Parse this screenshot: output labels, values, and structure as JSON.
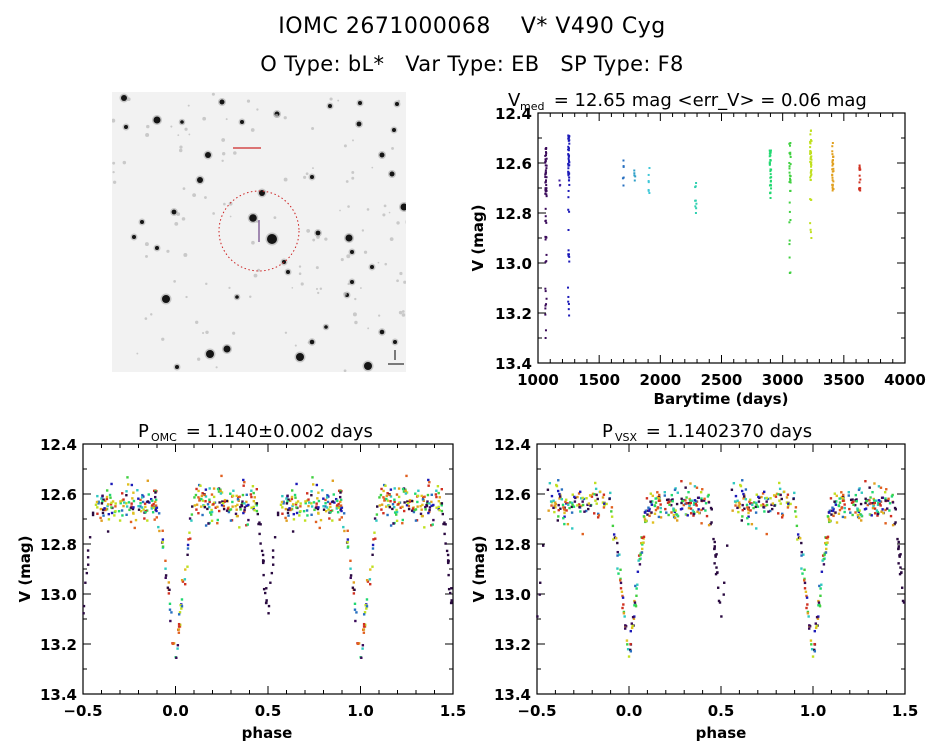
{
  "header": {
    "line1": "IOMC 2671000068    V* V490 Cyg",
    "line2": "O Type: bL*   Var Type: EB   SP Type: F8"
  },
  "finder_chart": {
    "description": "DSS finder image centered on target with red dashed circle and cross marker",
    "marker_color": "#cc2020",
    "circle_color": "#cc2020"
  },
  "chart_data": [
    {
      "id": "lightcurve-time",
      "type": "scatter",
      "title_main": "V",
      "title_sub": "med",
      "title_rest": " = 12.65 mag <err_V> = 0.06 mag",
      "xlabel": "Barytime (days)",
      "ylabel": "V (mag)",
      "xlim": [
        1000,
        4000
      ],
      "ylim": [
        13.4,
        12.4
      ],
      "y_inverted": true,
      "xticks": [
        1000,
        1500,
        2000,
        2500,
        3000,
        3500,
        4000
      ],
      "xtick_labels": [
        "1000",
        "1500",
        "2000",
        "2500",
        "3000",
        "3500",
        "4000"
      ],
      "yticks": [
        12.4,
        12.6,
        12.8,
        13.0,
        13.2,
        13.4
      ],
      "ytick_labels": [
        "12.4",
        "12.6",
        "12.8",
        "13.0",
        "13.2",
        "13.4"
      ],
      "epochs": [
        {
          "t": 1065,
          "vmin": 12.54,
          "vmax": 13.3,
          "color": "#3a0a5a",
          "n": 60
        },
        {
          "t": 1180,
          "vmin": 12.67,
          "vmax": 12.69,
          "color": "#4020a0",
          "n": 3
        },
        {
          "t": 1250,
          "vmin": 12.49,
          "vmax": 13.21,
          "color": "#1c1ab8",
          "n": 55
        },
        {
          "t": 1700,
          "vmin": 12.59,
          "vmax": 12.69,
          "color": "#2870c0",
          "n": 6
        },
        {
          "t": 1790,
          "vmin": 12.63,
          "vmax": 12.67,
          "color": "#30a0c8",
          "n": 5
        },
        {
          "t": 1910,
          "vmin": 12.62,
          "vmax": 12.72,
          "color": "#40c8d8",
          "n": 7
        },
        {
          "t": 2290,
          "vmin": 12.68,
          "vmax": 12.8,
          "color": "#30d0b0",
          "n": 9
        },
        {
          "t": 2900,
          "vmin": 12.55,
          "vmax": 12.74,
          "color": "#20d870",
          "n": 30
        },
        {
          "t": 3060,
          "vmin": 12.52,
          "vmax": 13.04,
          "color": "#40d040",
          "n": 30
        },
        {
          "t": 3230,
          "vmin": 12.47,
          "vmax": 12.9,
          "color": "#c0e020",
          "n": 45
        },
        {
          "t": 3410,
          "vmin": 12.52,
          "vmax": 12.71,
          "color": "#e0a020",
          "n": 30
        },
        {
          "t": 3630,
          "vmin": 12.61,
          "vmax": 12.71,
          "color": "#d03020",
          "n": 15
        }
      ]
    },
    {
      "id": "phase-omc",
      "type": "scatter",
      "title_main": "P",
      "title_sub": "OMC",
      "title_rest": " = 1.140±0.002 days",
      "xlabel": "phase",
      "ylabel": "V (mag)",
      "xlim": [
        -0.5,
        1.5
      ],
      "ylim": [
        13.4,
        12.4
      ],
      "y_inverted": true,
      "xticks": [
        -0.5,
        0.0,
        0.5,
        1.0,
        1.5
      ],
      "xtick_labels": [
        "−0.5",
        "0.0",
        "0.5",
        "1.0",
        "1.5"
      ],
      "yticks": [
        12.4,
        12.6,
        12.8,
        13.0,
        13.2,
        13.4
      ],
      "ytick_labels": [
        "12.4",
        "12.6",
        "12.8",
        "13.0",
        "13.2",
        "13.4"
      ],
      "light_curve_model": {
        "out_of_eclipse_mag": 12.64,
        "primary_min_phase": 0.0,
        "primary_min_mag": 13.3,
        "secondary_min_phase": 0.5,
        "secondary_min_mag": 13.13,
        "eclipse_half_width": 0.1,
        "scatter": 0.05
      }
    },
    {
      "id": "phase-vsx",
      "type": "scatter",
      "title_main": "P",
      "title_sub": "VSX",
      "title_rest": " = 1.1402370 days",
      "xlabel": "phase",
      "ylabel": "V (mag)",
      "xlim": [
        -0.5,
        1.5
      ],
      "ylim": [
        13.4,
        12.4
      ],
      "y_inverted": true,
      "xticks": [
        -0.5,
        0.0,
        0.5,
        1.0,
        1.5
      ],
      "xtick_labels": [
        "−0.5",
        "0.0",
        "0.5",
        "1.0",
        "1.5"
      ],
      "yticks": [
        12.4,
        12.6,
        12.8,
        13.0,
        13.2,
        13.4
      ],
      "ytick_labels": [
        "12.4",
        "12.6",
        "12.8",
        "13.0",
        "13.2",
        "13.4"
      ],
      "light_curve_model": {
        "out_of_eclipse_mag": 12.64,
        "primary_min_phase": 0.0,
        "primary_min_mag": 13.3,
        "secondary_min_phase": 0.5,
        "secondary_min_mag": 13.13,
        "eclipse_half_width": 0.1,
        "scatter": 0.05
      }
    }
  ]
}
